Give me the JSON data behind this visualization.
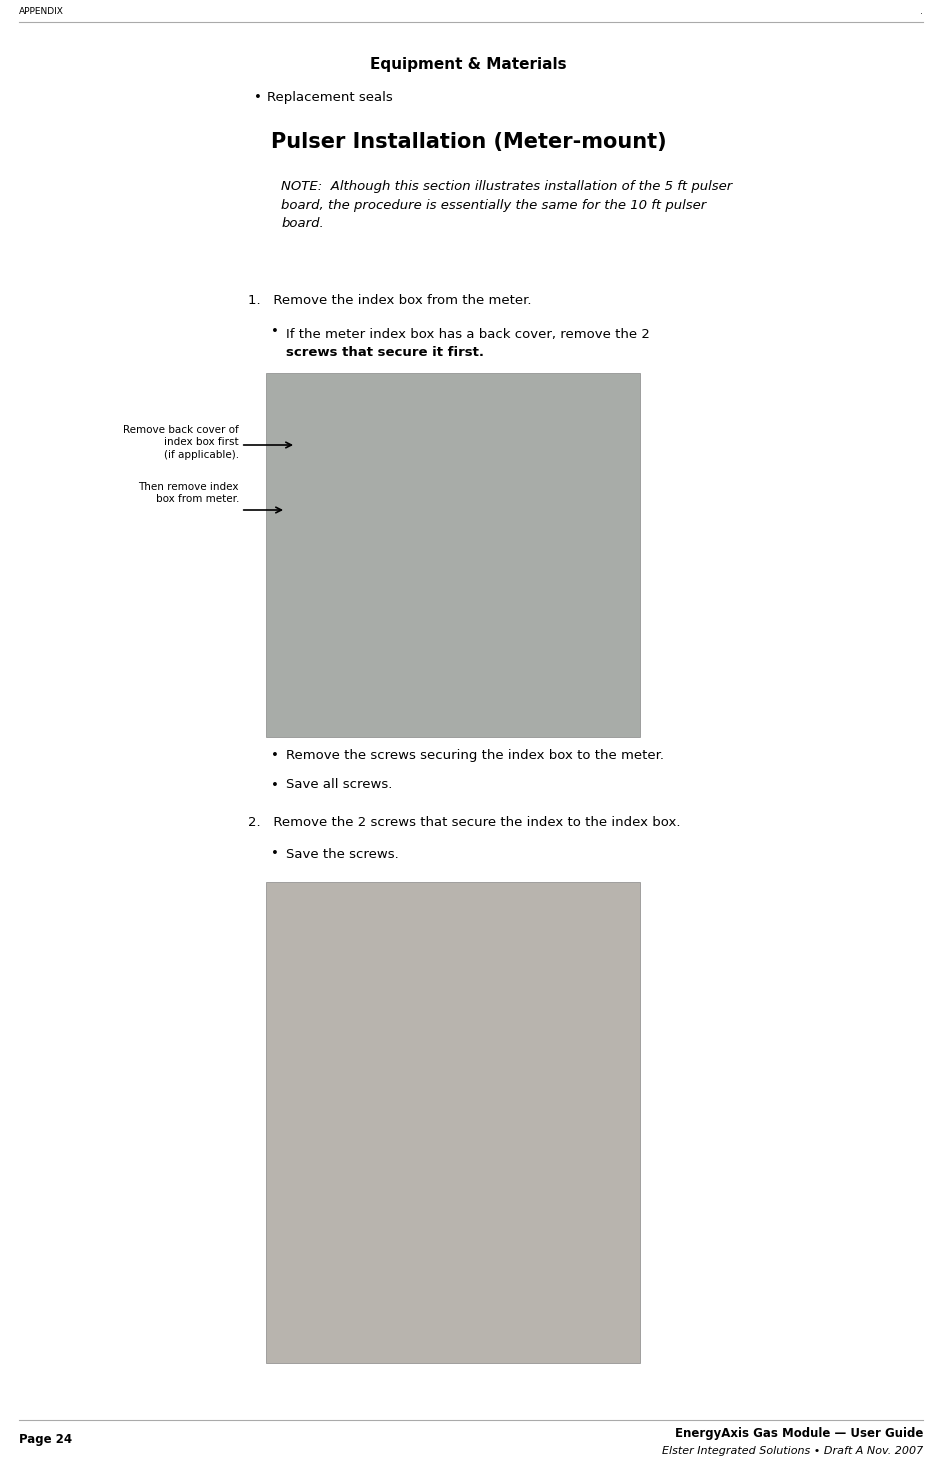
{
  "page_width": 9.37,
  "page_height": 14.67,
  "dpi": 100,
  "bg_color": "#ffffff",
  "header_text": "APPENDIX",
  "header_right": ".",
  "footer_left": "Page 24",
  "footer_right_line1": "EnergyAxis Gas Module — User Guide",
  "footer_right_line2": "Elster Integrated Solutions • Draft A Nov. 2007",
  "section_title": "Equipment & Materials",
  "bullet1": "Replacement seals",
  "section2_title": "Pulser Installation (Meter-mount)",
  "note_text": "NOTE:  Although this section illustrates installation of the 5 ft pulser\nboard, the procedure is essentially the same for the 10 ft pulser\nboard.",
  "step1_text": "1.   Remove the index box from the meter.",
  "bullet2_line1": "If the meter index box has a back cover, remove the 2",
  "bullet2_line2": "screws that secure it first.",
  "annotation1_text": "Remove back cover of\nindex box first\n(if applicable).",
  "annotation2_text": "Then remove index\nbox from meter.",
  "bullet3": "Remove the screws securing the index box to the meter.",
  "bullet4": "Save all screws.",
  "step2_text": "2.   Remove the 2 screws that secure the index to the index box.",
  "bullet5": "Save the screws.",
  "line_color": "#aaaaaa",
  "text_color": "#000000",
  "photo_bg1": "#b8bdb8",
  "photo_bg2": "#c8c4be",
  "font_size_header": 6.5,
  "font_size_section": 11,
  "font_size_section2": 15,
  "font_size_body": 9.5,
  "font_size_note": 9.5,
  "font_size_annot": 7.5,
  "font_size_footer": 8.5
}
